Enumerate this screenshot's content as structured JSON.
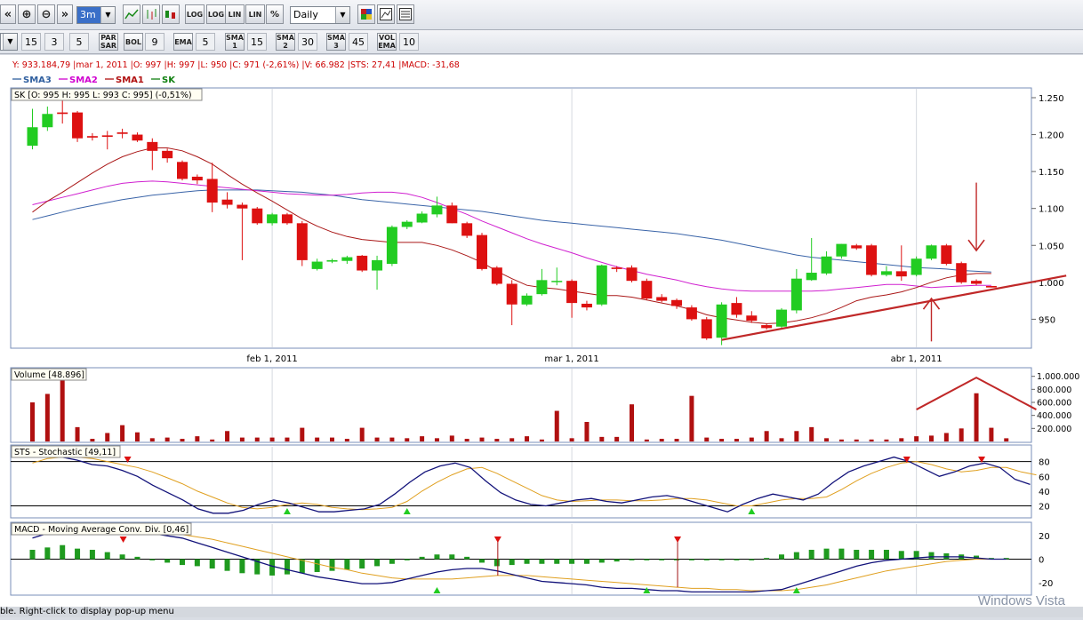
{
  "toolbar": {
    "zoom_in_label": "⊕",
    "zoom_out_label": "⊖",
    "range": "3m",
    "log_label": "LOG",
    "lin_label": "LIN",
    "pct_label": "%",
    "period": "Daily",
    "row2": {
      "n1": "15",
      "n2": "3",
      "n3": "5",
      "parsar": "PAR SAR",
      "bol": "BOL",
      "bol_val": "9",
      "ema": "EMA",
      "ema_val": "5",
      "sma1": "SMA 1",
      "sma1_val": "15",
      "sma2": "SMA 2",
      "sma2_val": "30",
      "sma3": "SMA 3",
      "sma3_val": "45",
      "volema": "VOL EMA",
      "volema_val": "10"
    }
  },
  "info_line": "Y: 933.184,79 |mar 1, 2011 |O: 997 |H: 997 |L: 950 |C: 971 (-2,61%) |V: 66.982 |STS: 27,41 |MACD: -31,68",
  "legend": [
    {
      "name": "SMA3",
      "color": "#2f5f9f"
    },
    {
      "name": "SMA2",
      "color": "#d000d0"
    },
    {
      "name": "SMA1",
      "color": "#b01010"
    },
    {
      "name": "SK",
      "color": "#108010"
    }
  ],
  "colors": {
    "up": "#22cc22",
    "down": "#dd1111",
    "sma1": "#aa1818",
    "sma2": "#d020d0",
    "sma3": "#3a64a8",
    "stoch_k": "#12127a",
    "stoch_d": "#e0a020",
    "volume": "#b01010",
    "arrow": "#c02828"
  },
  "price_panel": {
    "label": "SK [O: 995  H: 995  L: 993  C: 995] (-0,51%)"
  },
  "volume_panel": {
    "label": "Volume [48.896]"
  },
  "stoch_panel": {
    "label": "STS - Stochastic [49,11]"
  },
  "macd_panel": {
    "label": "MACD - Moving Average Conv. Div. [0,46]"
  },
  "status_text": "ble. Right-click to display pop-up menu",
  "watermark": "Windows Vista",
  "chart_data": {
    "type": "candlestick",
    "x_labels": [
      {
        "index": 16,
        "label": "feb 1, 2011"
      },
      {
        "index": 36,
        "label": "mar 1, 2011"
      },
      {
        "index": 59,
        "label": "abr 1, 2011"
      }
    ],
    "price": {
      "ylim": [
        912,
        1262
      ],
      "ticks": [
        950,
        1000,
        1050,
        1100,
        1150,
        1200,
        1250
      ],
      "tick_labels": [
        "950",
        "1.000",
        "1.050",
        "1.100",
        "1.150",
        "1.200",
        "1.250"
      ],
      "candles": [
        [
          1185,
          1210,
          1180,
          1235
        ],
        [
          1210,
          1228,
          1205,
          1238
        ],
        [
          1230,
          1228,
          1215,
          1248
        ],
        [
          1230,
          1195,
          1190,
          1232
        ],
        [
          1198,
          1196,
          1192,
          1202
        ],
        [
          1199,
          1197,
          1180,
          1205
        ],
        [
          1203,
          1201,
          1195,
          1208
        ],
        [
          1200,
          1192,
          1190,
          1203
        ],
        [
          1190,
          1178,
          1152,
          1195
        ],
        [
          1178,
          1168,
          1162,
          1181
        ],
        [
          1163,
          1140,
          1138,
          1165
        ],
        [
          1143,
          1138,
          1133,
          1146
        ],
        [
          1140,
          1108,
          1095,
          1162
        ],
        [
          1112,
          1105,
          1100,
          1122
        ],
        [
          1105,
          1100,
          1030,
          1108
        ],
        [
          1100,
          1080,
          1078,
          1102
        ],
        [
          1080,
          1092,
          1077,
          1094
        ],
        [
          1092,
          1080,
          1078,
          1094
        ],
        [
          1080,
          1030,
          1022,
          1083
        ],
        [
          1018,
          1028,
          1016,
          1032
        ],
        [
          1028,
          1030,
          1026,
          1032
        ],
        [
          1029,
          1034,
          1025,
          1036
        ],
        [
          1036,
          1016,
          1014,
          1037
        ],
        [
          1016,
          1030,
          990,
          1036
        ],
        [
          1025,
          1075,
          1022,
          1077
        ],
        [
          1075,
          1082,
          1072,
          1084
        ],
        [
          1081,
          1093,
          1080,
          1096
        ],
        [
          1092,
          1104,
          1088,
          1116
        ],
        [
          1104,
          1080,
          1080,
          1108
        ],
        [
          1080,
          1063,
          1060,
          1082
        ],
        [
          1064,
          1018,
          1016,
          1067
        ],
        [
          1020,
          998,
          996,
          1022
        ],
        [
          998,
          970,
          942,
          1003
        ],
        [
          970,
          982,
          968,
          985
        ],
        [
          984,
          1003,
          982,
          1018
        ],
        [
          1002,
          1002,
          996,
          1020
        ],
        [
          1002,
          972,
          952,
          1004
        ],
        [
          971,
          966,
          962,
          975
        ],
        [
          970,
          1023,
          968,
          1024
        ],
        [
          1020,
          1018,
          1014,
          1022
        ],
        [
          1020,
          1002,
          1000,
          1023
        ],
        [
          1002,
          978,
          976,
          1005
        ],
        [
          980,
          975,
          973,
          984
        ],
        [
          976,
          968,
          964,
          978
        ],
        [
          966,
          950,
          948,
          969
        ],
        [
          950,
          924,
          922,
          953
        ],
        [
          925,
          970,
          915,
          973
        ],
        [
          972,
          956,
          952,
          980
        ],
        [
          955,
          948,
          945,
          961
        ],
        [
          942,
          938,
          936,
          944
        ],
        [
          940,
          963,
          938,
          965
        ],
        [
          962,
          1005,
          958,
          1018
        ],
        [
          1003,
          1013,
          1002,
          1060
        ],
        [
          1012,
          1035,
          1010,
          1042
        ],
        [
          1035,
          1052,
          1032,
          1052
        ],
        [
          1050,
          1046,
          1044,
          1052
        ],
        [
          1050,
          1010,
          1008,
          1052
        ],
        [
          1010,
          1015,
          1008,
          1022
        ],
        [
          1015,
          1008,
          1002,
          1050
        ],
        [
          1010,
          1032,
          1008,
          1035
        ],
        [
          1032,
          1050,
          1030,
          1051
        ],
        [
          1050,
          1025,
          1023,
          1052
        ],
        [
          1026,
          1000,
          998,
          1028
        ],
        [
          1002,
          998,
          996,
          1004
        ],
        [
          995,
          993,
          993,
          995
        ]
      ],
      "sma1": [
        1095,
        1110,
        1122,
        1135,
        1148,
        1160,
        1170,
        1177,
        1182,
        1182,
        1178,
        1170,
        1160,
        1146,
        1133,
        1121,
        1110,
        1098,
        1086,
        1076,
        1068,
        1062,
        1058,
        1056,
        1054,
        1054,
        1054,
        1050,
        1044,
        1036,
        1027,
        1015,
        1005,
        996,
        993,
        991,
        988,
        985,
        982,
        982,
        980,
        976,
        972,
        968,
        963,
        956,
        952,
        949,
        946,
        944,
        945,
        948,
        952,
        958,
        966,
        975,
        980,
        983,
        987,
        993,
        1000,
        1006,
        1010,
        1012,
        1012
      ],
      "sma2": [
        1105,
        1110,
        1115,
        1120,
        1125,
        1130,
        1134,
        1136,
        1137,
        1136,
        1134,
        1132,
        1130,
        1128,
        1126,
        1124,
        1122,
        1120,
        1119,
        1118,
        1118,
        1119,
        1121,
        1122,
        1122,
        1120,
        1115,
        1108,
        1100,
        1092,
        1083,
        1075,
        1067,
        1059,
        1052,
        1046,
        1040,
        1033,
        1027,
        1021,
        1016,
        1011,
        1007,
        1003,
        998,
        994,
        991,
        989,
        988,
        988,
        988,
        988,
        988,
        989,
        991,
        993,
        995,
        997,
        997,
        995,
        993,
        994,
        995,
        996,
        996
      ],
      "sma3": [
        1085,
        1090,
        1095,
        1100,
        1104,
        1108,
        1112,
        1115,
        1118,
        1120,
        1122,
        1124,
        1125,
        1125,
        1125,
        1125,
        1124,
        1123,
        1122,
        1120,
        1118,
        1115,
        1112,
        1110,
        1108,
        1106,
        1104,
        1102,
        1100,
        1098,
        1096,
        1093,
        1090,
        1087,
        1084,
        1082,
        1080,
        1078,
        1076,
        1074,
        1072,
        1070,
        1068,
        1066,
        1063,
        1060,
        1057,
        1053,
        1049,
        1045,
        1041,
        1037,
        1034,
        1032,
        1030,
        1028,
        1026,
        1024,
        1022,
        1020,
        1019,
        1018,
        1016,
        1015,
        1014
      ]
    },
    "volume": {
      "ylim": [
        0,
        1050000
      ],
      "ticks": [
        200000,
        400000,
        600000,
        800000,
        1000000
      ],
      "tick_labels": [
        "200.000",
        "400.000",
        "600.000",
        "800.000",
        "1.000.000"
      ],
      "values": [
        600000,
        730000,
        1050000,
        220000,
        40000,
        130000,
        250000,
        140000,
        50000,
        60000,
        40000,
        80000,
        30000,
        160000,
        60000,
        60000,
        60000,
        60000,
        210000,
        60000,
        60000,
        40000,
        210000,
        60000,
        60000,
        50000,
        80000,
        50000,
        90000,
        40000,
        60000,
        40000,
        50000,
        80000,
        30000,
        470000,
        50000,
        300000,
        70000,
        70000,
        570000,
        30000,
        40000,
        40000,
        700000,
        60000,
        40000,
        40000,
        60000,
        160000,
        50000,
        160000,
        220000,
        50000,
        30000,
        30000,
        30000,
        30000,
        50000,
        80000,
        90000,
        130000,
        200000,
        740000,
        210000,
        48896
      ]
    },
    "stochastic": {
      "ylim": [
        5,
        100
      ],
      "ticks": [
        20,
        40,
        60,
        80
      ],
      "lines": [
        20,
        80
      ],
      "k": [
        92,
        92,
        90,
        86,
        82,
        76,
        74,
        68,
        60,
        48,
        38,
        28,
        16,
        10,
        10,
        14,
        22,
        28,
        24,
        18,
        12,
        12,
        14,
        16,
        22,
        36,
        52,
        66,
        74,
        78,
        72,
        54,
        38,
        28,
        22,
        20,
        24,
        28,
        30,
        26,
        24,
        28,
        32,
        34,
        30,
        24,
        18,
        12,
        22,
        30,
        36,
        32,
        28,
        36,
        52,
        66,
        74,
        80,
        86,
        80,
        70,
        60,
        66,
        74,
        78,
        72,
        56,
        49
      ],
      "d": [
        78,
        84,
        86,
        86,
        84,
        80,
        76,
        72,
        66,
        58,
        50,
        40,
        32,
        24,
        18,
        16,
        18,
        22,
        24,
        22,
        18,
        16,
        15,
        16,
        18,
        26,
        40,
        52,
        62,
        70,
        72,
        64,
        54,
        44,
        34,
        28,
        26,
        27,
        28,
        28,
        27,
        27,
        28,
        30,
        30,
        28,
        24,
        20,
        20,
        24,
        28,
        30,
        30,
        32,
        42,
        54,
        64,
        72,
        78,
        80,
        76,
        70,
        66,
        68,
        72,
        72,
        66,
        62
      ],
      "markers_up": [
        17,
        25,
        48
      ],
      "markers_down": [
        6,
        58,
        63
      ]
    },
    "macd": {
      "ylim": [
        -30,
        30
      ],
      "ticks": [
        20,
        0,
        -20
      ],
      "tick_labels": [
        "20",
        "0",
        "-20"
      ],
      "macd_line": [
        18,
        22,
        25,
        26,
        26,
        25,
        24,
        23,
        22,
        20,
        18,
        14,
        10,
        6,
        2,
        -2,
        -6,
        -9,
        -12,
        -15,
        -17,
        -19,
        -21,
        -21,
        -20,
        -17,
        -14,
        -11,
        -9,
        -8,
        -8,
        -10,
        -13,
        -16,
        -19,
        -20,
        -21,
        -22,
        -24,
        -25,
        -25,
        -26,
        -27,
        -27,
        -28,
        -28,
        -28,
        -28,
        -28,
        -27,
        -26,
        -22,
        -18,
        -14,
        -10,
        -6,
        -3,
        -1,
        0,
        1,
        2,
        2,
        2,
        1,
        0,
        0
      ],
      "signal_line": [
        22,
        23,
        24,
        25,
        25,
        25,
        25,
        24,
        23,
        22,
        21,
        19,
        17,
        14,
        11,
        8,
        5,
        2,
        -1,
        -4,
        -7,
        -9,
        -12,
        -14,
        -16,
        -17,
        -17,
        -17,
        -17,
        -16,
        -15,
        -14,
        -14,
        -14,
        -15,
        -16,
        -17,
        -18,
        -19,
        -20,
        -21,
        -22,
        -23,
        -24,
        -25,
        -25,
        -26,
        -26,
        -27,
        -27,
        -27,
        -26,
        -24,
        -22,
        -19,
        -16,
        -13,
        -10,
        -8,
        -6,
        -4,
        -2,
        -1,
        0,
        0,
        0
      ],
      "histogram": [
        8,
        10,
        12,
        9,
        8,
        6,
        4,
        2,
        -1,
        -3,
        -5,
        -6,
        -8,
        -10,
        -12,
        -13,
        -14,
        -13,
        -12,
        -11,
        -10,
        -9,
        -8,
        -6,
        -4,
        -1,
        2,
        4,
        4,
        2,
        -3,
        -6,
        -5,
        -4,
        -4,
        -4,
        -4,
        -4,
        -3,
        -2,
        -1,
        -1,
        -1,
        -1,
        -1,
        -1,
        -1,
        -1,
        -1,
        1,
        4,
        6,
        8,
        9,
        9,
        8,
        8,
        8,
        7,
        7,
        6,
        5,
        4,
        3,
        1,
        1
      ],
      "markers_down": [
        6,
        31,
        43
      ],
      "markers_up": [
        27,
        41,
        51
      ]
    },
    "annotations": [
      {
        "type": "trendline",
        "from": [
          46,
          922
        ],
        "to": [
          69,
          1009
        ]
      },
      {
        "type": "arrow-down",
        "x": 63,
        "y_from": 1135,
        "y_to": 1043
      },
      {
        "type": "arrow-up",
        "x": 60,
        "y_from": 920,
        "y_to": 978
      }
    ]
  }
}
